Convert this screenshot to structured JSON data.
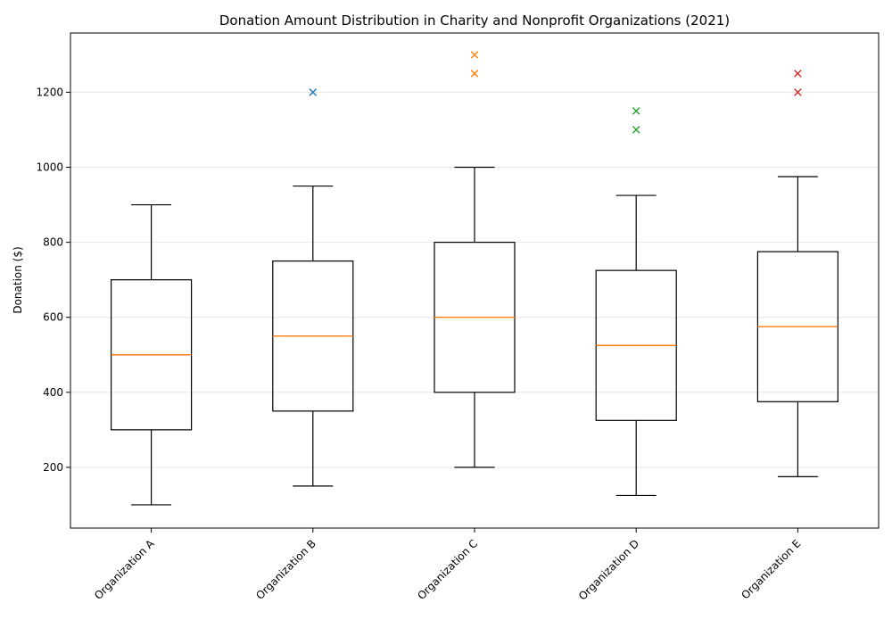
{
  "chart_data": {
    "type": "box",
    "title": "Donation Amount Distribution in Charity and Nonprofit Organizations (2021)",
    "xlabel": "",
    "ylabel": "Donation ($)",
    "ylim": [
      38,
      1358
    ],
    "yticks": [
      200,
      400,
      600,
      800,
      1000,
      1200
    ],
    "grid": {
      "axis": "y",
      "enabled": true
    },
    "colors": {
      "box": "#000000",
      "median": "#ff7f0e",
      "grid": "#e6e6e6"
    },
    "categories": [
      "Organization A",
      "Organization B",
      "Organization C",
      "Organization D",
      "Organization E"
    ],
    "boxes": [
      {
        "category": "Organization A",
        "whisker_low": 100,
        "q1": 300,
        "median": 500,
        "q3": 700,
        "whisker_high": 900,
        "outliers": [],
        "outlier_color": "#1f77b4"
      },
      {
        "category": "Organization B",
        "whisker_low": 150,
        "q1": 350,
        "median": 550,
        "q3": 750,
        "whisker_high": 950,
        "outliers": [
          1200
        ],
        "outlier_color": "#1f77b4"
      },
      {
        "category": "Organization C",
        "whisker_low": 200,
        "q1": 400,
        "median": 600,
        "q3": 800,
        "whisker_high": 1000,
        "outliers": [
          1250,
          1300
        ],
        "outlier_color": "#ff7f0e"
      },
      {
        "category": "Organization D",
        "whisker_low": 125,
        "q1": 325,
        "median": 525,
        "q3": 725,
        "whisker_high": 925,
        "outliers": [
          1100,
          1150
        ],
        "outlier_color": "#2ca02c"
      },
      {
        "category": "Organization E",
        "whisker_low": 175,
        "q1": 375,
        "median": 575,
        "q3": 775,
        "whisker_high": 975,
        "outliers": [
          1200,
          1250
        ],
        "outlier_color": "#d62728"
      }
    ]
  }
}
